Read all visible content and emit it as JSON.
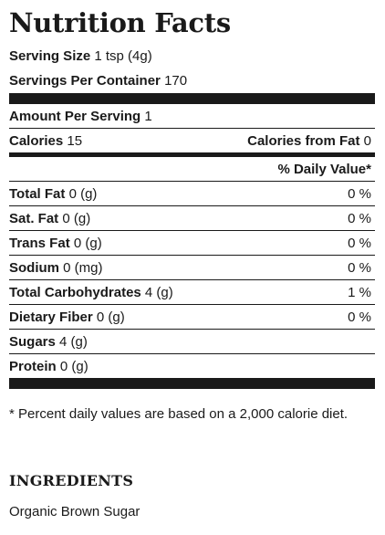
{
  "title": "Nutrition Facts",
  "serving_size": {
    "label": "Serving Size",
    "value": "1 tsp (4g)"
  },
  "servings_per_container": {
    "label": "Servings Per Container",
    "value": "170"
  },
  "amount_per_serving": {
    "label": "Amount Per Serving",
    "value": "1"
  },
  "calories": {
    "label": "Calories",
    "value": "15"
  },
  "calories_from_fat": {
    "label": "Calories from Fat",
    "value": "0"
  },
  "daily_value_header": "% Daily Value*",
  "nutrients": [
    {
      "label": "Total Fat",
      "amount": "0 (g)",
      "dv": "0 %"
    },
    {
      "label": "Sat. Fat",
      "amount": "0 (g)",
      "dv": "0 %"
    },
    {
      "label": "Trans Fat",
      "amount": "0 (g)",
      "dv": "0 %"
    },
    {
      "label": "Sodium",
      "amount": "0 (mg)",
      "dv": "0 %"
    },
    {
      "label": "Total Carbohydrates",
      "amount": "4 (g)",
      "dv": "1 %"
    },
    {
      "label": "Dietary Fiber",
      "amount": "0 (g)",
      "dv": "0 %"
    },
    {
      "label": "Sugars",
      "amount": "4 (g)",
      "dv": ""
    },
    {
      "label": "Protein",
      "amount": "0 (g)",
      "dv": ""
    }
  ],
  "footnote": "* Percent daily values are based on a 2,000 calorie diet.",
  "ingredients": {
    "title": "INGREDIENTS",
    "text": "Organic Brown Sugar"
  }
}
